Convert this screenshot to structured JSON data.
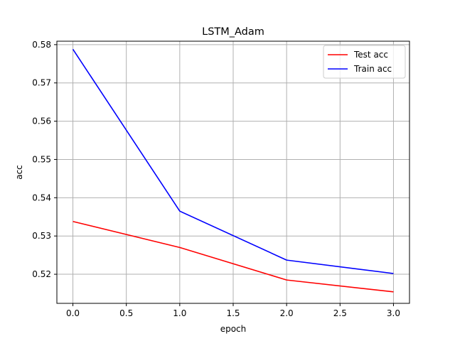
{
  "chart_data": {
    "type": "line",
    "title": "LSTM_Adam",
    "xlabel": "epoch",
    "ylabel": "acc",
    "x": [
      0.0,
      1.0,
      2.0,
      3.0
    ],
    "xlim": [
      -0.15,
      3.15
    ],
    "ylim": [
      0.5124,
      0.5809
    ],
    "xticks": [
      0.0,
      0.5,
      1.0,
      1.5,
      2.0,
      2.5,
      3.0
    ],
    "xtick_labels": [
      "0.0",
      "0.5",
      "1.0",
      "1.5",
      "2.0",
      "2.5",
      "3.0"
    ],
    "yticks": [
      0.52,
      0.53,
      0.54,
      0.55,
      0.56,
      0.57,
      0.58
    ],
    "ytick_labels": [
      "0.52",
      "0.53",
      "0.54",
      "0.55",
      "0.56",
      "0.57",
      "0.58"
    ],
    "grid": true,
    "legend": "top-right",
    "series": [
      {
        "name": "Test acc",
        "color": "#ff0000",
        "values": [
          0.5338,
          0.527,
          0.5185,
          0.5154
        ]
      },
      {
        "name": "Train acc",
        "color": "#0000ff",
        "values": [
          0.5788,
          0.5365,
          0.5237,
          0.5202
        ]
      }
    ]
  }
}
